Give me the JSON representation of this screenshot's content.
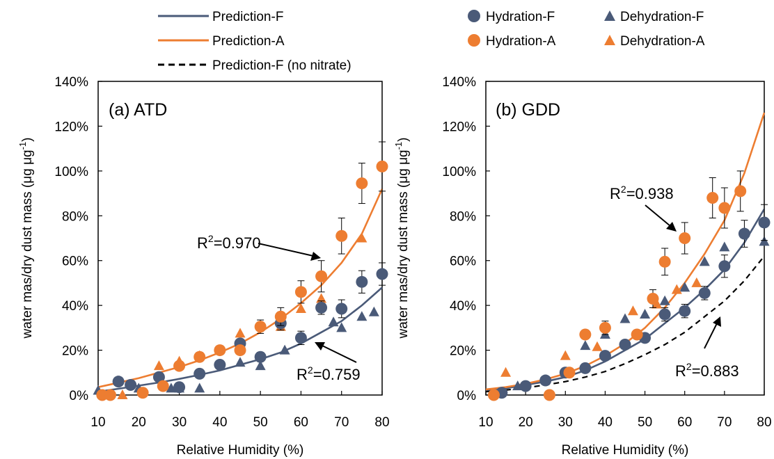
{
  "legend": [
    {
      "label": "Prediction-F",
      "kind": "line",
      "color": "#4A5A78",
      "dash": false
    },
    {
      "label": "Hydration-F",
      "kind": "circle",
      "color": "#4A5A78"
    },
    {
      "label": "Dehydration-F",
      "kind": "triangle",
      "color": "#4A5A78"
    },
    {
      "label": "Prediction-A",
      "kind": "line",
      "color": "#ED7D31",
      "dash": false
    },
    {
      "label": "Hydration-A",
      "kind": "circle",
      "color": "#ED7D31"
    },
    {
      "label": "Dehydration-A",
      "kind": "triangle",
      "color": "#ED7D31"
    },
    {
      "label": "Prediction-F (no nitrate)",
      "kind": "line",
      "color": "#000000",
      "dash": true
    }
  ],
  "colors": {
    "f": "#4A5A78",
    "a": "#ED7D31",
    "nonitrate": "#000000"
  },
  "chart_data": [
    {
      "type": "scatter",
      "panel_title": "(a) ATD",
      "xlabel": "Relative Humidity (%)",
      "ylabel": "water mas/dry dust mass",
      "ylabel_unit": "(μg μg",
      "ylabel_sup": "-1",
      "ylabel_close": ")",
      "xlim": [
        10,
        80
      ],
      "ylim": [
        0,
        1.4
      ],
      "xticks": [
        10,
        20,
        30,
        40,
        50,
        60,
        70,
        80
      ],
      "yticks": [
        0,
        0.2,
        0.4,
        0.6,
        0.8,
        1.0,
        1.2,
        1.4
      ],
      "ytick_labels": [
        "0%",
        "20%",
        "40%",
        "60%",
        "80%",
        "100%",
        "120%",
        "140%"
      ],
      "series": [
        {
          "name": "Prediction-F",
          "kind": "line",
          "color": "#4A5A78",
          "x": [
            10,
            15,
            20,
            25,
            30,
            35,
            40,
            45,
            50,
            55,
            60,
            65,
            70,
            75,
            80
          ],
          "y": [
            0.015,
            0.028,
            0.042,
            0.056,
            0.072,
            0.09,
            0.11,
            0.135,
            0.16,
            0.19,
            0.23,
            0.28,
            0.33,
            0.4,
            0.48
          ]
        },
        {
          "name": "Prediction-A",
          "kind": "line",
          "color": "#ED7D31",
          "x": [
            10,
            15,
            20,
            25,
            30,
            35,
            40,
            45,
            50,
            55,
            60,
            65,
            70,
            75,
            80
          ],
          "y": [
            0.035,
            0.055,
            0.075,
            0.1,
            0.125,
            0.155,
            0.19,
            0.23,
            0.28,
            0.34,
            0.41,
            0.49,
            0.59,
            0.72,
            0.92
          ]
        },
        {
          "name": "Hydration-F",
          "kind": "circle",
          "color": "#4A5A78",
          "x": [
            15,
            18,
            25,
            30,
            35,
            40,
            45,
            50,
            55,
            60,
            65,
            70,
            75,
            80
          ],
          "y": [
            0.06,
            0.045,
            0.08,
            0.035,
            0.095,
            0.135,
            0.23,
            0.17,
            0.32,
            0.255,
            0.39,
            0.385,
            0.505,
            0.54
          ],
          "err": [
            0,
            0,
            0,
            0,
            0,
            0.015,
            0.015,
            0.02,
            0.03,
            0.03,
            0.03,
            0.04,
            0.05,
            0.05
          ]
        },
        {
          "name": "Hydration-A",
          "kind": "circle",
          "color": "#ED7D31",
          "x": [
            11,
            13,
            21,
            26,
            30,
            35,
            40,
            45,
            50,
            55,
            60,
            65,
            70,
            75,
            80
          ],
          "y": [
            0,
            0,
            0.01,
            0.04,
            0.13,
            0.17,
            0.2,
            0.2,
            0.305,
            0.35,
            0.46,
            0.53,
            0.71,
            0.945,
            1.02
          ],
          "err": [
            0,
            0,
            0,
            0,
            0,
            0.02,
            0.02,
            0.02,
            0.03,
            0.04,
            0.05,
            0.07,
            0.08,
            0.09,
            0.11
          ]
        },
        {
          "name": "Dehydration-F",
          "kind": "triangle",
          "color": "#4A5A78",
          "x": [
            10,
            20,
            28,
            30,
            35,
            45,
            50,
            56,
            65,
            68,
            70,
            75,
            78
          ],
          "y": [
            0.02,
            0.03,
            0.03,
            0.03,
            0.03,
            0.145,
            0.13,
            0.2,
            0.405,
            0.325,
            0.3,
            0.35,
            0.37
          ]
        },
        {
          "name": "Dehydration-A",
          "kind": "triangle",
          "color": "#ED7D31",
          "x": [
            16,
            25,
            30,
            35,
            45,
            55,
            60,
            65,
            75
          ],
          "y": [
            0,
            0.13,
            0.15,
            0.175,
            0.275,
            0.305,
            0.385,
            0.43,
            0.7
          ]
        }
      ],
      "annotations": [
        {
          "label": "R",
          "sup": "2",
          "value": "=0.970"
        },
        {
          "label": "R",
          "sup": "2",
          "value": "=0.759"
        }
      ]
    },
    {
      "type": "scatter",
      "panel_title": "(b) GDD",
      "xlabel": "Relative Humidity (%)",
      "ylabel": "water mas/dry dust mass",
      "ylabel_unit": "(μg μg",
      "ylabel_sup": "-1",
      "ylabel_close": ")",
      "xlim": [
        10,
        80
      ],
      "ylim": [
        0,
        1.4
      ],
      "xticks": [
        10,
        20,
        30,
        40,
        50,
        60,
        70,
        80
      ],
      "yticks": [
        0,
        0.2,
        0.4,
        0.6,
        0.8,
        1.0,
        1.2,
        1.4
      ],
      "ytick_labels": [
        "0%",
        "20%",
        "40%",
        "60%",
        "80%",
        "100%",
        "120%",
        "140%"
      ],
      "series": [
        {
          "name": "Prediction-F",
          "kind": "line",
          "color": "#4A5A78",
          "x": [
            10,
            15,
            20,
            25,
            30,
            35,
            40,
            45,
            50,
            55,
            60,
            65,
            70,
            75,
            80
          ],
          "y": [
            0.02,
            0.03,
            0.045,
            0.06,
            0.08,
            0.11,
            0.15,
            0.2,
            0.25,
            0.32,
            0.39,
            0.47,
            0.56,
            0.68,
            0.83
          ]
        },
        {
          "name": "Prediction-A",
          "kind": "line",
          "color": "#ED7D31",
          "x": [
            10,
            15,
            20,
            25,
            30,
            35,
            40,
            45,
            50,
            55,
            60,
            65,
            70,
            75,
            80
          ],
          "y": [
            0.025,
            0.035,
            0.05,
            0.07,
            0.095,
            0.13,
            0.175,
            0.23,
            0.3,
            0.39,
            0.5,
            0.63,
            0.78,
            0.99,
            1.26
          ]
        },
        {
          "name": "Prediction-F (no nitrate)",
          "kind": "line",
          "color": "#000000",
          "dash": true,
          "x": [
            10,
            15,
            20,
            25,
            30,
            35,
            40,
            45,
            50,
            55,
            60,
            65,
            70,
            75,
            80
          ],
          "y": [
            0.015,
            0.022,
            0.032,
            0.045,
            0.06,
            0.08,
            0.105,
            0.14,
            0.18,
            0.225,
            0.28,
            0.35,
            0.42,
            0.51,
            0.62
          ]
        },
        {
          "name": "Hydration-F",
          "kind": "circle",
          "color": "#4A5A78",
          "x": [
            14,
            20,
            25,
            30,
            35,
            40,
            45,
            50,
            55,
            60,
            65,
            70,
            75,
            80
          ],
          "y": [
            0.01,
            0.04,
            0.065,
            0.1,
            0.12,
            0.175,
            0.225,
            0.255,
            0.36,
            0.375,
            0.455,
            0.575,
            0.72,
            0.77
          ],
          "err": [
            0,
            0,
            0,
            0,
            0,
            0.02,
            0.02,
            0.02,
            0.03,
            0.03,
            0.03,
            0.05,
            0.06,
            0.08
          ]
        },
        {
          "name": "Hydration-A",
          "kind": "circle",
          "color": "#ED7D31",
          "x": [
            12,
            26,
            31,
            35,
            40,
            48,
            52,
            55,
            60,
            67,
            70,
            74
          ],
          "y": [
            0,
            0,
            0.1,
            0.27,
            0.3,
            0.27,
            0.43,
            0.595,
            0.7,
            0.88,
            0.835,
            0.91
          ],
          "err": [
            0,
            0,
            0,
            0.02,
            0.03,
            0.02,
            0.04,
            0.06,
            0.07,
            0.09,
            0.09,
            0.09
          ]
        },
        {
          "name": "Dehydration-F",
          "kind": "triangle",
          "color": "#4A5A78",
          "x": [
            18,
            30,
            35,
            40,
            45,
            50,
            55,
            60,
            65,
            70,
            80
          ],
          "y": [
            0.04,
            0.1,
            0.22,
            0.27,
            0.34,
            0.36,
            0.42,
            0.48,
            0.595,
            0.66,
            0.685
          ]
        },
        {
          "name": "Dehydration-A",
          "kind": "triangle",
          "color": "#ED7D31",
          "x": [
            15,
            30,
            38,
            47,
            53,
            58,
            63
          ],
          "y": [
            0.1,
            0.175,
            0.215,
            0.375,
            0.405,
            0.47,
            0.5
          ]
        }
      ],
      "annotations": [
        {
          "label": "R",
          "sup": "2",
          "value": "=0.938"
        },
        {
          "label": "R",
          "sup": "2",
          "value": "=0.883"
        }
      ]
    }
  ]
}
